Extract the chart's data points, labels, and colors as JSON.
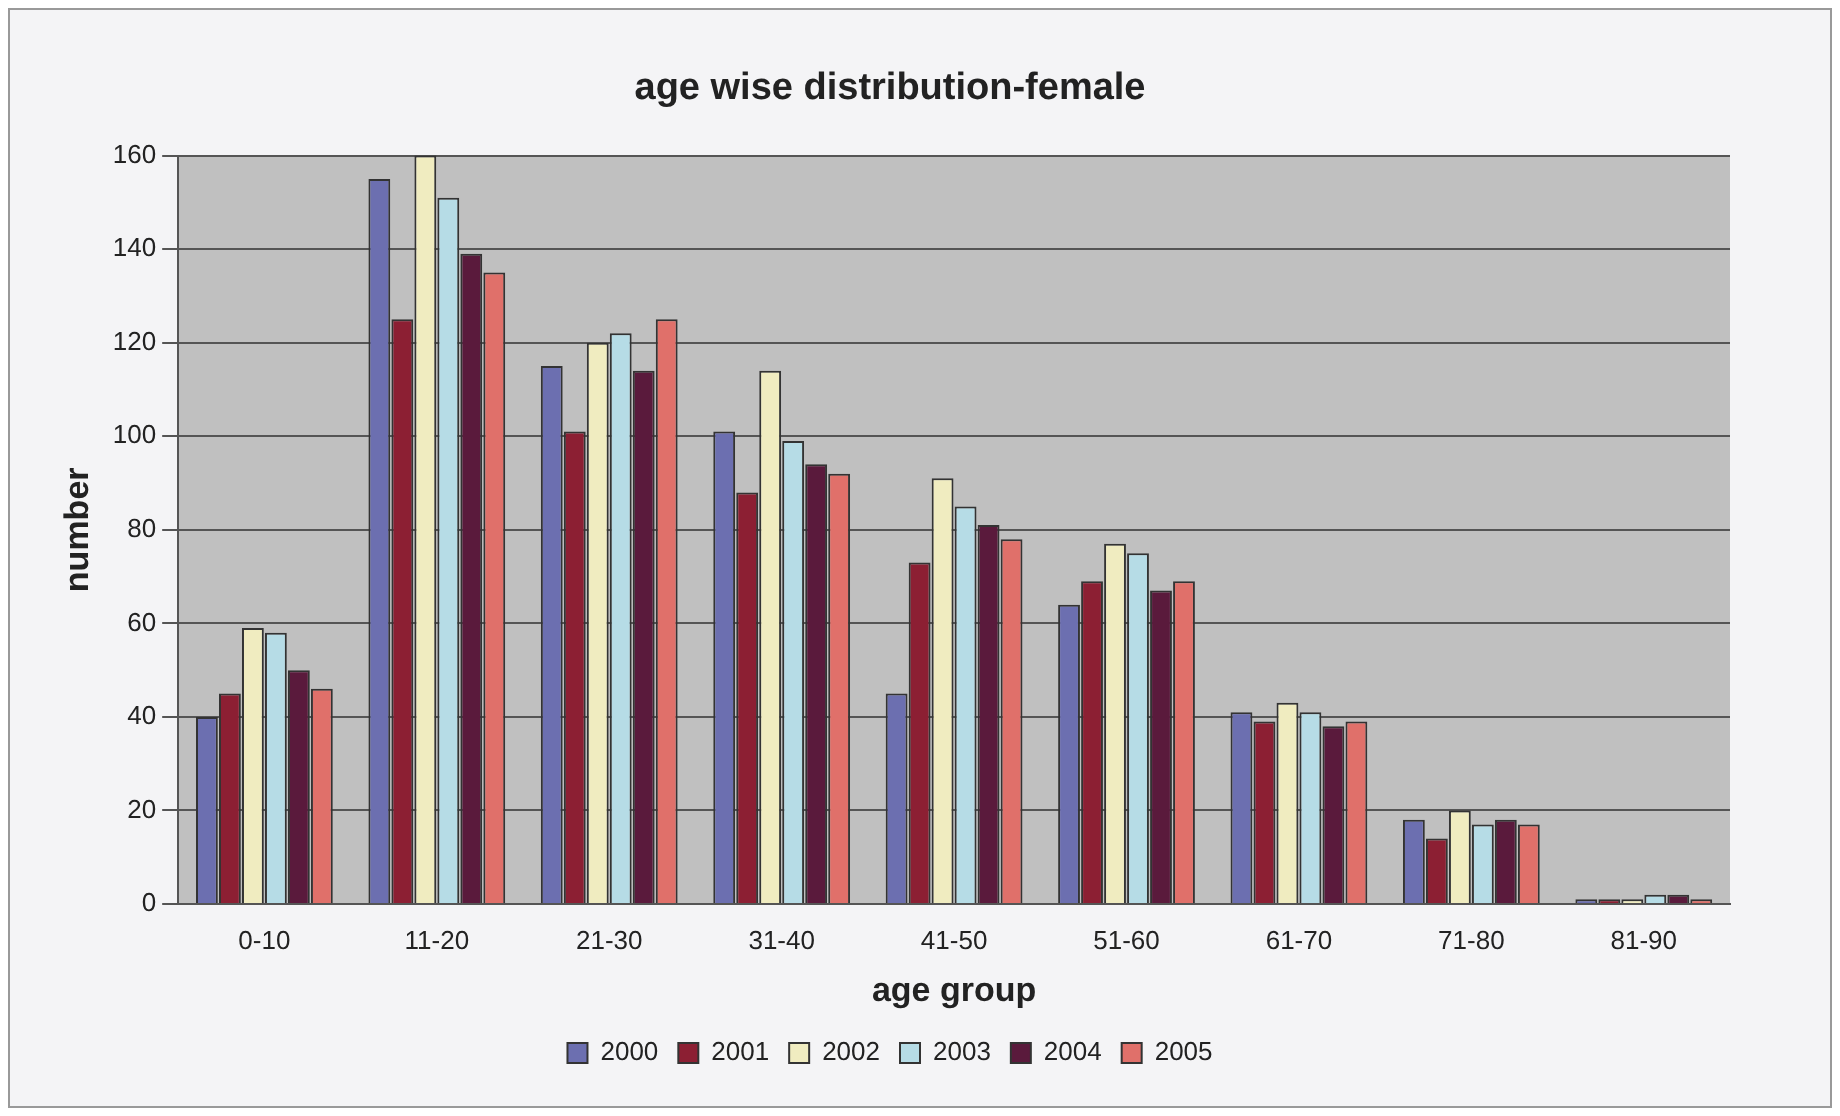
{
  "chart_data": {
    "type": "bar",
    "title": "age wise distribution-female",
    "xlabel": "age group",
    "ylabel": "number",
    "categories": [
      "0-10",
      "11-20",
      "21-30",
      "31-40",
      "41-50",
      "51-60",
      "61-70",
      "71-80",
      "81-90"
    ],
    "series": [
      {
        "name": "2000",
        "color": "#6c6fb0",
        "values": [
          40,
          155,
          115,
          101,
          45,
          64,
          41,
          18,
          1
        ]
      },
      {
        "name": "2001",
        "color": "#8c1f33",
        "values": [
          45,
          125,
          101,
          88,
          73,
          69,
          39,
          14,
          1
        ]
      },
      {
        "name": "2002",
        "color": "#f0ecc0",
        "values": [
          59,
          160,
          120,
          114,
          91,
          77,
          43,
          20,
          1
        ]
      },
      {
        "name": "2003",
        "color": "#b6dce6",
        "values": [
          58,
          151,
          122,
          99,
          85,
          75,
          41,
          17,
          2
        ]
      },
      {
        "name": "2004",
        "color": "#5a1a3c",
        "values": [
          50,
          139,
          114,
          94,
          81,
          67,
          38,
          18,
          2
        ]
      },
      {
        "name": "2005",
        "color": "#e0706a",
        "values": [
          46,
          135,
          125,
          92,
          78,
          69,
          39,
          17,
          1
        ]
      }
    ],
    "ylim": [
      0,
      160
    ],
    "yticks": [
      0,
      20,
      40,
      60,
      80,
      100,
      120,
      140,
      160
    ],
    "grid": "y",
    "legend": "bottom"
  }
}
